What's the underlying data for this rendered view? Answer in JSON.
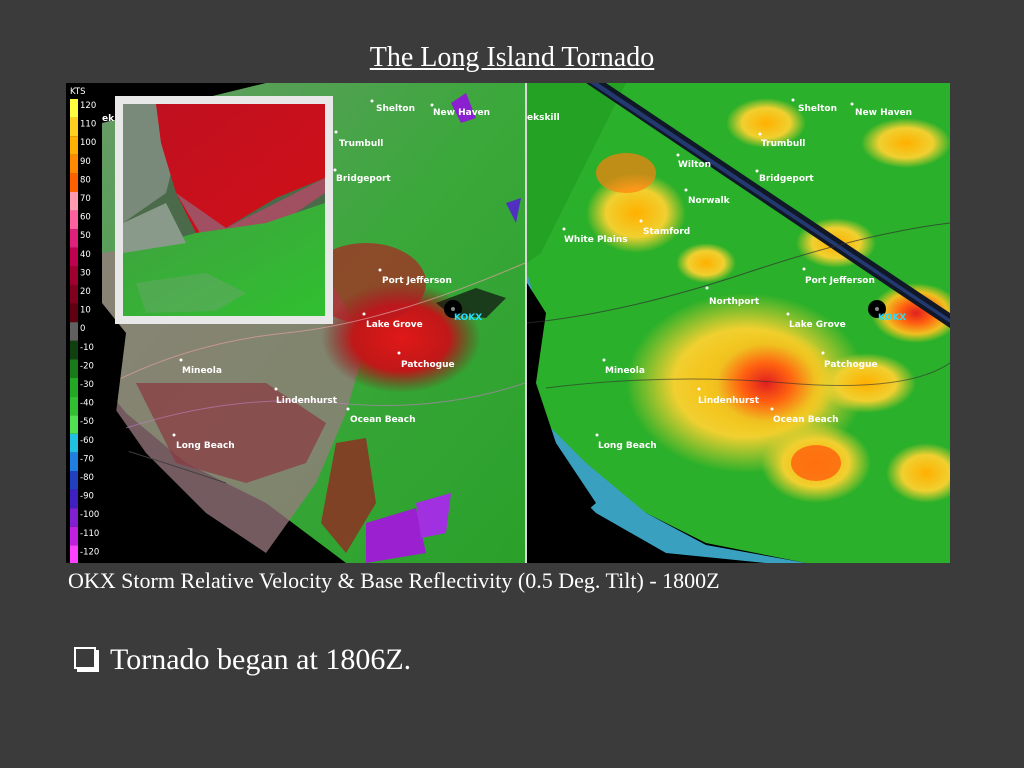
{
  "slide": {
    "title": "The Long Island Tornado",
    "caption": "OKX Storm Relative Velocity & Base Reflectivity (0.5 Deg. Tilt) - 1800Z",
    "bullet": "Tornado began at 1806Z."
  },
  "legend": {
    "unit": "KTS",
    "ticks": [
      "120",
      "110",
      "100",
      "90",
      "80",
      "70",
      "60",
      "50",
      "40",
      "30",
      "20",
      "10",
      "0",
      "-10",
      "-20",
      "-30",
      "-40",
      "-50",
      "-60",
      "-70",
      "-80",
      "-90",
      "-100",
      "-110",
      "-120"
    ],
    "colors": [
      "#ffff40",
      "#ffd020",
      "#ffb000",
      "#ff8a00",
      "#ff6000",
      "#ff9ab0",
      "#ff60a0",
      "#e0207a",
      "#c00050",
      "#a00030",
      "#800020",
      "#600010",
      "#606060",
      "#104010",
      "#1a7a1a",
      "#22a822",
      "#30c030",
      "#50e050",
      "#20c0e0",
      "#2080e0",
      "#2040c0",
      "#4020c0",
      "#8020d0",
      "#c020e0",
      "#ff40ff"
    ]
  },
  "colors": {
    "background": "#3b3b3b",
    "velocity_inbound": "#d01820",
    "velocity_outbound": "#2aa830",
    "reflectivity_core": "#e02020"
  },
  "velocity_labels": {
    "shelton": "Shelton",
    "new_haven": "New Haven",
    "trumbull": "Trumbull",
    "bridgeport": "Bridgeport",
    "port_jefferson": "Port Jefferson",
    "lake_grove": "Lake Grove",
    "patchogue": "Patchogue",
    "mineola": "Mineola",
    "lindenhurst": "Lindenhurst",
    "ocean_beach": "Ocean Beach",
    "long_beach": "Long Beach",
    "kokx": "KOKX",
    "edge": "ek"
  },
  "reflectivity_labels": {
    "peekskill": "ekskill",
    "shelton": "Shelton",
    "new_haven": "New Haven",
    "trumbull": "Trumbull",
    "wilton": "Wilton",
    "bridgeport": "Bridgeport",
    "norwalk": "Norwalk",
    "stamford": "Stamford",
    "white_plains": "White Plains",
    "port_jefferson": "Port Jefferson",
    "northport": "Northport",
    "lake_grove": "Lake Grove",
    "patchogue": "Patchogue",
    "mineola": "Mineola",
    "lindenhurst": "Lindenhurst",
    "ocean_beach": "Ocean Beach",
    "long_beach": "Long Beach",
    "kokx": "KOKX"
  }
}
